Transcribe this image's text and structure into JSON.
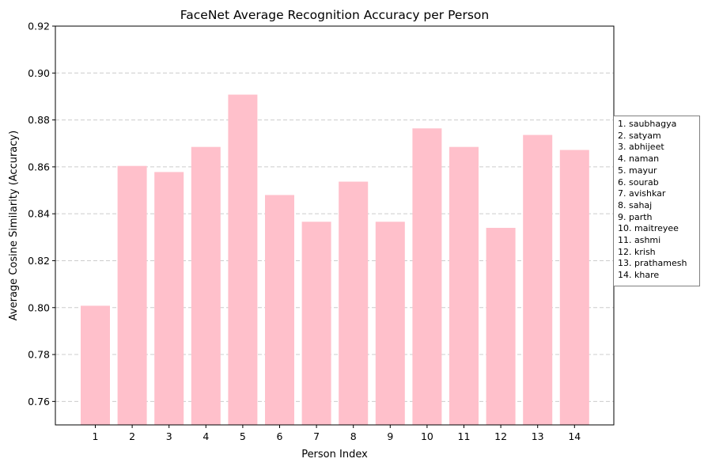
{
  "chart_data": {
    "type": "bar",
    "title": "FaceNet Average Recognition Accuracy per Person",
    "xlabel": "Person Index",
    "ylabel": "Average Cosine Similarity (Accuracy)",
    "categories": [
      "1",
      "2",
      "3",
      "4",
      "5",
      "6",
      "7",
      "8",
      "9",
      "10",
      "11",
      "12",
      "13",
      "14"
    ],
    "values": [
      0.8008,
      0.8604,
      0.8578,
      0.8685,
      0.8908,
      0.848,
      0.8366,
      0.8537,
      0.8366,
      0.8764,
      0.8685,
      0.834,
      0.8736,
      0.8672
    ],
    "ylim": [
      0.75,
      0.92
    ],
    "yticks": [
      "0.76",
      "0.78",
      "0.80",
      "0.82",
      "0.84",
      "0.86",
      "0.88",
      "0.90",
      "0.92"
    ],
    "grid": "horizontal dashed",
    "bar_color": "#ffc0cb",
    "legend_position": "right",
    "legend": [
      "1. saubhagya",
      "2. satyam",
      "3. abhijeet",
      "4. naman",
      "5. mayur",
      "6. sourab",
      "7. avishkar",
      "8. sahaj",
      "9. parth",
      "10. maitreyee",
      "11. ashmi",
      "12. krish",
      "13. prathamesh",
      "14. khare"
    ]
  }
}
